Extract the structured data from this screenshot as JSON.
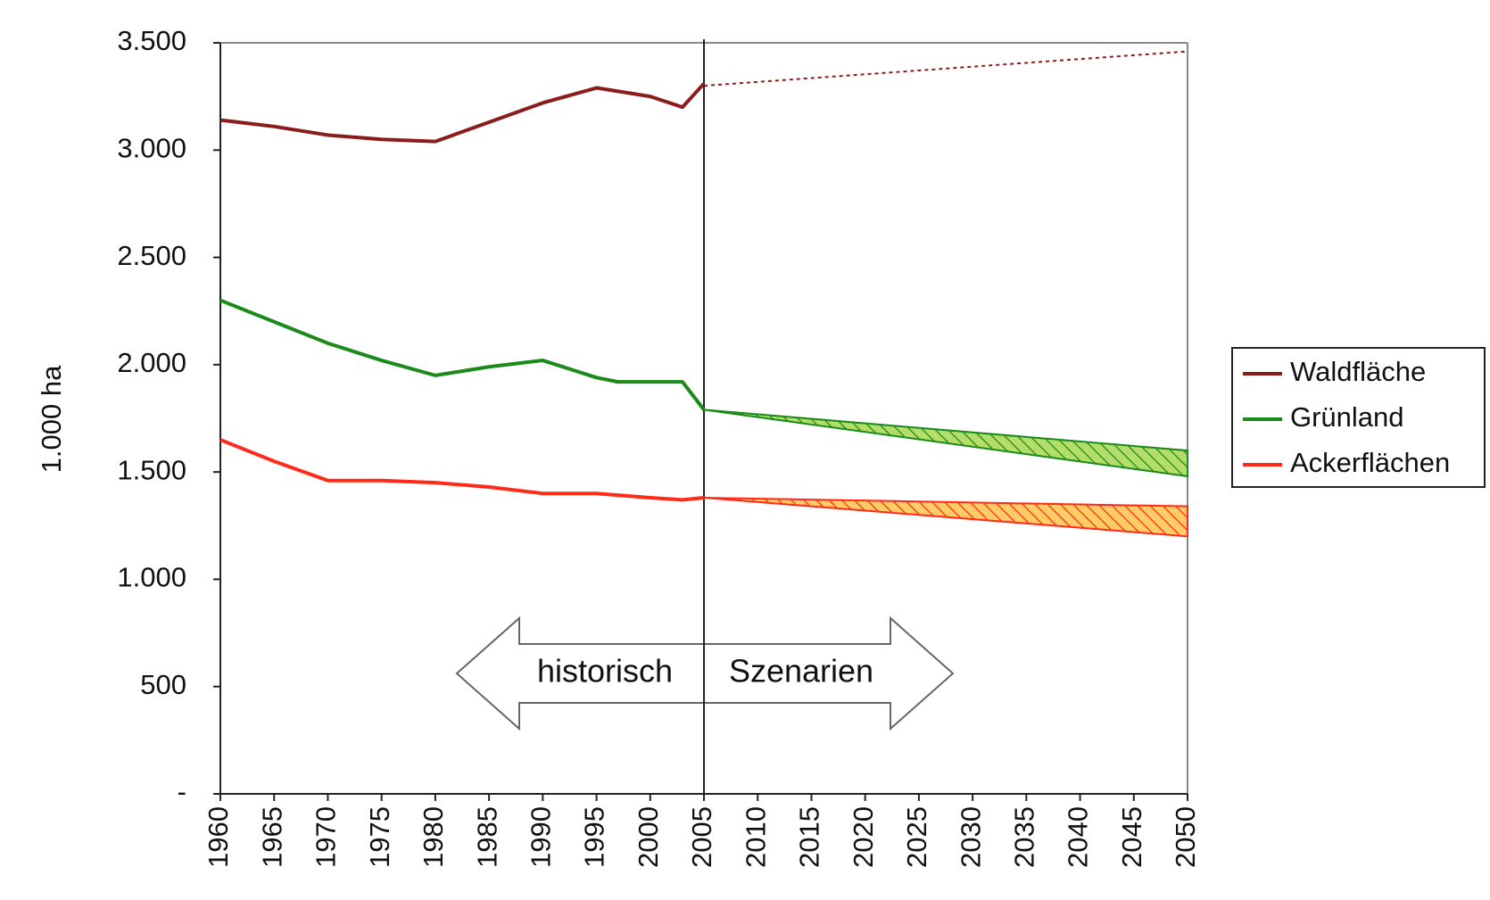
{
  "chart_data": {
    "type": "line",
    "ylabel": "1.000 ha",
    "xlim": [
      1960,
      2050
    ],
    "xticks": [
      1960,
      1965,
      1970,
      1975,
      1980,
      1985,
      1990,
      1995,
      2000,
      2005,
      2010,
      2015,
      2020,
      2025,
      2030,
      2035,
      2040,
      2045,
      2050
    ],
    "ylim": [
      0,
      3500
    ],
    "yticks": [
      {
        "value": 0,
        "label": "-"
      },
      500,
      {
        "value": 1000,
        "label": "1.000"
      },
      {
        "value": 1500,
        "label": "1.500"
      },
      {
        "value": 2000,
        "label": "2.000"
      },
      {
        "value": 2500,
        "label": "2.500"
      },
      {
        "value": 3000,
        "label": "3.000"
      },
      {
        "value": 3500,
        "label": "3.500"
      }
    ],
    "divider_x": 2005,
    "annotations": [
      "historisch",
      "Szenarien"
    ],
    "legend": "right",
    "series": [
      {
        "name": "Waldfläche",
        "color": "#8b1c1c",
        "x": [
          1960,
          1965,
          1970,
          1975,
          1980,
          1985,
          1990,
          1995,
          2000,
          2003,
          2005
        ],
        "values": [
          3140,
          3110,
          3070,
          3050,
          3040,
          3130,
          3220,
          3290,
          3250,
          3200,
          3310
        ],
        "scenario": {
          "x": [
            2005,
            2050
          ],
          "values": [
            3300,
            3460
          ]
        }
      },
      {
        "name": "Grünland",
        "color": "#1a8a1a",
        "x": [
          1960,
          1965,
          1970,
          1975,
          1980,
          1985,
          1990,
          1995,
          1997,
          2003,
          2005
        ],
        "values": [
          2300,
          2200,
          2100,
          2020,
          1950,
          1990,
          2020,
          1940,
          1920,
          1920,
          1790
        ],
        "scenario": {
          "x": [
            2005,
            2050
          ],
          "high": [
            1790,
            1600
          ],
          "low": [
            1790,
            1480
          ],
          "fill": "#b5dd6a"
        }
      },
      {
        "name": "Ackerflächen",
        "color": "#ff2a1a",
        "x": [
          1960,
          1965,
          1970,
          1975,
          1980,
          1985,
          1990,
          1995,
          2000,
          2003,
          2005
        ],
        "values": [
          1650,
          1550,
          1460,
          1460,
          1450,
          1430,
          1400,
          1400,
          1380,
          1370,
          1380
        ],
        "scenario": {
          "x": [
            2005,
            2050
          ],
          "high": [
            1380,
            1340
          ],
          "low": [
            1380,
            1200
          ],
          "fill": "#ffcc66"
        }
      }
    ]
  }
}
